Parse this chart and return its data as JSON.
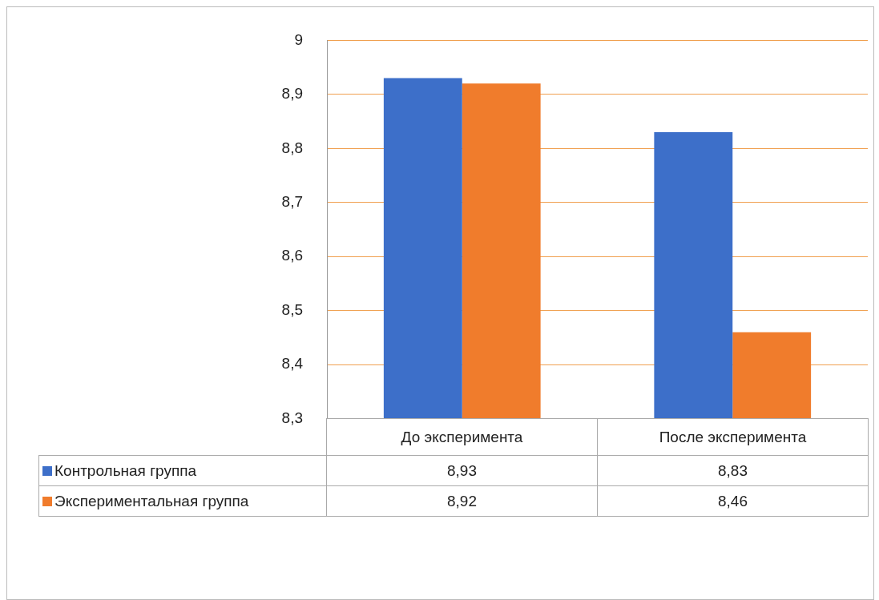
{
  "chart_data": {
    "type": "bar",
    "categories": [
      "До эксперимента",
      "После эксперимента"
    ],
    "series": [
      {
        "name": "Контрольная группа",
        "color": "#3d6fc9",
        "values": [
          8.93,
          8.83
        ],
        "value_labels": [
          "8,93",
          "8,83"
        ]
      },
      {
        "name": "Экспериментальная группа",
        "color": "#f07c2c",
        "values": [
          8.92,
          8.46
        ],
        "value_labels": [
          "8,92",
          "8,46"
        ]
      }
    ],
    "ylim": [
      8.3,
      9
    ],
    "yticks": [
      {
        "value": 8.3,
        "label": "8,3"
      },
      {
        "value": 8.4,
        "label": "8,4"
      },
      {
        "value": 8.5,
        "label": "8,5"
      },
      {
        "value": 8.6,
        "label": "8,6"
      },
      {
        "value": 8.7,
        "label": "8,7"
      },
      {
        "value": 8.8,
        "label": "8,8"
      },
      {
        "value": 8.9,
        "label": "8,9"
      },
      {
        "value": 9,
        "label": "9"
      }
    ],
    "grid": "y",
    "legend": "bottom"
  }
}
